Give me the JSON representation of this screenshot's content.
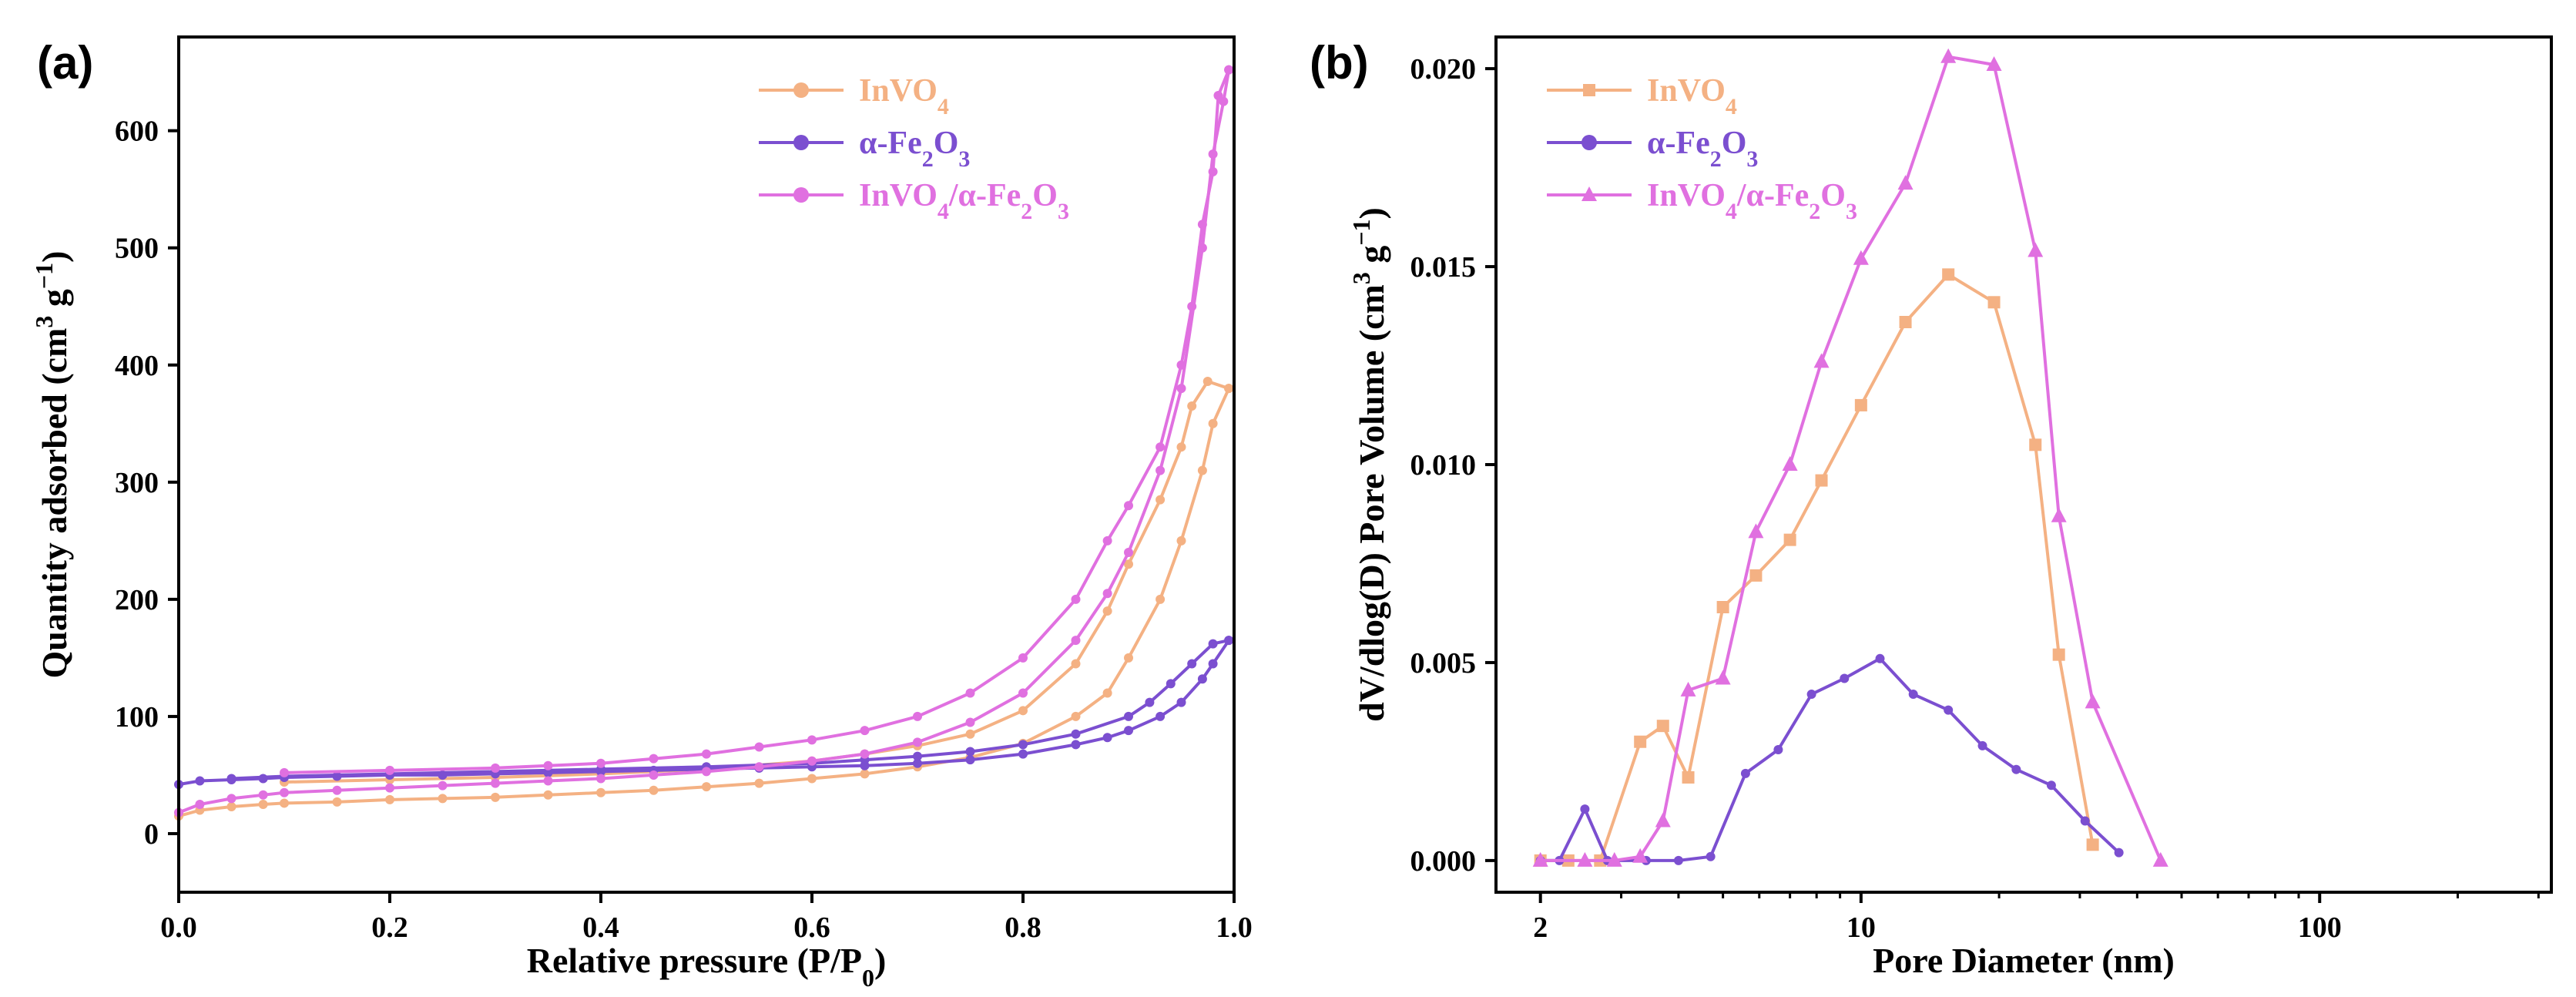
{
  "chart_data": [
    {
      "panel": "(a)",
      "type": "line",
      "xlabel": "Relative pressure (P/P",
      "xlabel_sub": "0",
      "xlabel_end": ")",
      "ylabel": "Quantity adsorbed (cm",
      "ylabel_sup1": "3",
      "ylabel_mid": " g",
      "ylabel_sup2": "−1",
      "ylabel_end": ")",
      "xlim": [
        0,
        1.0
      ],
      "ylim": [
        -50,
        680
      ],
      "xticks": [
        0.0,
        0.2,
        0.4,
        0.6,
        0.8,
        1.0
      ],
      "xtick_labels": [
        "0.0",
        "0.2",
        "0.4",
        "0.6",
        "0.8",
        "1.0"
      ],
      "yticks": [
        0,
        100,
        200,
        300,
        400,
        500,
        600
      ],
      "ytick_labels": [
        "0",
        "100",
        "200",
        "300",
        "400",
        "500",
        "600"
      ],
      "legend_position": "top-right",
      "series": [
        {
          "name": "InVO4",
          "label_parts": [
            {
              "t": "InVO"
            },
            {
              "t": "4",
              "sub": true
            }
          ],
          "color": "#f4b183",
          "marker": "circle",
          "adsorption": [
            [
              0.0,
              15
            ],
            [
              0.02,
              20
            ],
            [
              0.05,
              23
            ],
            [
              0.08,
              25
            ],
            [
              0.1,
              26
            ],
            [
              0.15,
              27
            ],
            [
              0.2,
              29
            ],
            [
              0.25,
              30
            ],
            [
              0.3,
              31
            ],
            [
              0.35,
              33
            ],
            [
              0.4,
              35
            ],
            [
              0.45,
              37
            ],
            [
              0.5,
              40
            ],
            [
              0.55,
              43
            ],
            [
              0.6,
              47
            ],
            [
              0.65,
              51
            ],
            [
              0.7,
              57
            ],
            [
              0.75,
              65
            ],
            [
              0.8,
              77
            ],
            [
              0.85,
              100
            ],
            [
              0.88,
              120
            ],
            [
              0.9,
              150
            ],
            [
              0.93,
              200
            ],
            [
              0.95,
              250
            ],
            [
              0.97,
              310
            ],
            [
              0.98,
              350
            ],
            [
              0.995,
              380
            ]
          ],
          "desorption": [
            [
              0.995,
              380
            ],
            [
              0.975,
              386
            ],
            [
              0.96,
              365
            ],
            [
              0.95,
              330
            ],
            [
              0.93,
              285
            ],
            [
              0.9,
              230
            ],
            [
              0.88,
              190
            ],
            [
              0.85,
              145
            ],
            [
              0.8,
              105
            ],
            [
              0.75,
              85
            ],
            [
              0.7,
              75
            ],
            [
              0.65,
              68
            ],
            [
              0.6,
              62
            ],
            [
              0.5,
              55
            ],
            [
              0.4,
              51
            ],
            [
              0.3,
              48
            ],
            [
              0.2,
              46
            ],
            [
              0.1,
              44
            ]
          ]
        },
        {
          "name": "α-Fe2O3",
          "label_parts": [
            {
              "t": "α-Fe"
            },
            {
              "t": "2",
              "sub": true
            },
            {
              "t": "O"
            },
            {
              "t": "3",
              "sub": true
            }
          ],
          "color": "#7b4fd0",
          "marker": "circle",
          "adsorption": [
            [
              0.0,
              42
            ],
            [
              0.02,
              45
            ],
            [
              0.05,
              46
            ],
            [
              0.08,
              47
            ],
            [
              0.1,
              48
            ],
            [
              0.15,
              49
            ],
            [
              0.2,
              50
            ],
            [
              0.25,
              50
            ],
            [
              0.3,
              51
            ],
            [
              0.35,
              52
            ],
            [
              0.4,
              53
            ],
            [
              0.45,
              54
            ],
            [
              0.5,
              55
            ],
            [
              0.55,
              56
            ],
            [
              0.6,
              57
            ],
            [
              0.65,
              58
            ],
            [
              0.7,
              60
            ],
            [
              0.75,
              63
            ],
            [
              0.8,
              68
            ],
            [
              0.85,
              76
            ],
            [
              0.88,
              82
            ],
            [
              0.9,
              88
            ],
            [
              0.93,
              100
            ],
            [
              0.95,
              112
            ],
            [
              0.97,
              132
            ],
            [
              0.98,
              145
            ],
            [
              0.995,
              165
            ]
          ],
          "desorption": [
            [
              0.995,
              165
            ],
            [
              0.98,
              162
            ],
            [
              0.96,
              145
            ],
            [
              0.94,
              128
            ],
            [
              0.92,
              112
            ],
            [
              0.9,
              100
            ],
            [
              0.85,
              85
            ],
            [
              0.8,
              76
            ],
            [
              0.75,
              70
            ],
            [
              0.7,
              66
            ],
            [
              0.65,
              63
            ],
            [
              0.6,
              60
            ],
            [
              0.5,
              57
            ],
            [
              0.4,
              55
            ],
            [
              0.3,
              53
            ],
            [
              0.2,
              51
            ],
            [
              0.1,
              49
            ],
            [
              0.05,
              47
            ]
          ]
        },
        {
          "name": "InVO4/α-Fe2O3",
          "label_parts": [
            {
              "t": "InVO"
            },
            {
              "t": "4",
              "sub": true
            },
            {
              "t": "/α-Fe"
            },
            {
              "t": "2",
              "sub": true
            },
            {
              "t": "O"
            },
            {
              "t": "3",
              "sub": true
            }
          ],
          "color": "#e070e0",
          "marker": "circle",
          "adsorption": [
            [
              0.0,
              18
            ],
            [
              0.02,
              25
            ],
            [
              0.05,
              30
            ],
            [
              0.08,
              33
            ],
            [
              0.1,
              35
            ],
            [
              0.15,
              37
            ],
            [
              0.2,
              39
            ],
            [
              0.25,
              41
            ],
            [
              0.3,
              43
            ],
            [
              0.35,
              45
            ],
            [
              0.4,
              47
            ],
            [
              0.45,
              50
            ],
            [
              0.5,
              53
            ],
            [
              0.55,
              57
            ],
            [
              0.6,
              62
            ],
            [
              0.65,
              68
            ],
            [
              0.7,
              78
            ],
            [
              0.75,
              95
            ],
            [
              0.8,
              120
            ],
            [
              0.85,
              165
            ],
            [
              0.88,
              205
            ],
            [
              0.9,
              240
            ],
            [
              0.93,
              310
            ],
            [
              0.95,
              380
            ],
            [
              0.97,
              500
            ],
            [
              0.98,
              580
            ],
            [
              0.99,
              625
            ],
            [
              0.995,
              652
            ]
          ],
          "desorption": [
            [
              0.995,
              652
            ],
            [
              0.985,
              630
            ],
            [
              0.98,
              565
            ],
            [
              0.97,
              520
            ],
            [
              0.96,
              450
            ],
            [
              0.95,
              400
            ],
            [
              0.93,
              330
            ],
            [
              0.9,
              280
            ],
            [
              0.88,
              250
            ],
            [
              0.85,
              200
            ],
            [
              0.8,
              150
            ],
            [
              0.75,
              120
            ],
            [
              0.7,
              100
            ],
            [
              0.65,
              88
            ],
            [
              0.6,
              80
            ],
            [
              0.55,
              74
            ],
            [
              0.5,
              68
            ],
            [
              0.45,
              64
            ],
            [
              0.4,
              60
            ],
            [
              0.35,
              58
            ],
            [
              0.3,
              56
            ],
            [
              0.2,
              54
            ],
            [
              0.1,
              52
            ]
          ]
        }
      ]
    },
    {
      "panel": "(b)",
      "type": "line",
      "xscale": "log",
      "xlabel": "Pore Diameter (nm)",
      "ylabel": "dV/dlog(D) Pore Volume (cm",
      "ylabel_sup1": "3",
      "ylabel_mid": " g",
      "ylabel_sup2": "−1",
      "ylabel_end": ")",
      "xlim": [
        1.6,
        320
      ],
      "ylim": [
        -0.0008,
        0.0208
      ],
      "xticks": [
        2,
        10,
        100
      ],
      "xtick_labels": [
        "2",
        "10",
        "100"
      ],
      "yticks": [
        0.0,
        0.005,
        0.01,
        0.015,
        0.02
      ],
      "ytick_labels": [
        "0.000",
        "0.005",
        "0.010",
        "0.015",
        "0.020"
      ],
      "legend_position": "top-left",
      "series": [
        {
          "name": "InVO4",
          "label_parts": [
            {
              "t": "InVO"
            },
            {
              "t": "4",
              "sub": true
            }
          ],
          "color": "#f4b183",
          "marker": "square",
          "x": [
            2.0,
            2.3,
            2.7,
            3.3,
            3.7,
            4.2,
            5.0,
            5.9,
            7.0,
            8.2,
            10.0,
            12.5,
            15.5,
            19.5,
            24.0,
            27.0,
            32.0
          ],
          "y": [
            0.0,
            0.0,
            0.0,
            0.003,
            0.0034,
            0.0021,
            0.0064,
            0.0072,
            0.0081,
            0.0096,
            0.0115,
            0.0136,
            0.0148,
            0.0141,
            0.0105,
            0.0052,
            0.0004
          ]
        },
        {
          "name": "α-Fe2O3",
          "label_parts": [
            {
              "t": "α-Fe"
            },
            {
              "t": "2",
              "sub": true
            },
            {
              "t": "O"
            },
            {
              "t": "3",
              "sub": true
            }
          ],
          "color": "#7b4fd0",
          "marker": "circle",
          "x": [
            2.0,
            2.2,
            2.5,
            2.8,
            3.4,
            4.0,
            4.7,
            5.6,
            6.6,
            7.8,
            9.2,
            11.0,
            13.0,
            15.5,
            18.4,
            21.8,
            26.0,
            30.8,
            36.5
          ],
          "y": [
            0.0,
            0.0,
            0.0013,
            0.0,
            0.0,
            0.0,
            0.0001,
            0.0022,
            0.0028,
            0.0042,
            0.0046,
            0.0051,
            0.0042,
            0.0038,
            0.0029,
            0.0023,
            0.0019,
            0.001,
            0.0002
          ]
        },
        {
          "name": "InVO4/α-Fe2O3",
          "label_parts": [
            {
              "t": "InVO"
            },
            {
              "t": "4",
              "sub": true
            },
            {
              "t": "/α-Fe"
            },
            {
              "t": "2",
              "sub": true
            },
            {
              "t": "O"
            },
            {
              "t": "3",
              "sub": true
            }
          ],
          "color": "#e070e0",
          "marker": "triangle",
          "x": [
            2.0,
            2.5,
            2.9,
            3.3,
            3.7,
            4.2,
            5.0,
            5.9,
            7.0,
            8.2,
            10.0,
            12.5,
            15.5,
            19.5,
            24.0,
            27.0,
            32.0,
            45.0
          ],
          "y": [
            0.0,
            0.0,
            0.0,
            0.0001,
            0.001,
            0.0043,
            0.0046,
            0.0083,
            0.01,
            0.0126,
            0.0152,
            0.0171,
            0.0203,
            0.0201,
            0.0154,
            0.0087,
            0.004,
            0.0
          ]
        }
      ]
    }
  ]
}
